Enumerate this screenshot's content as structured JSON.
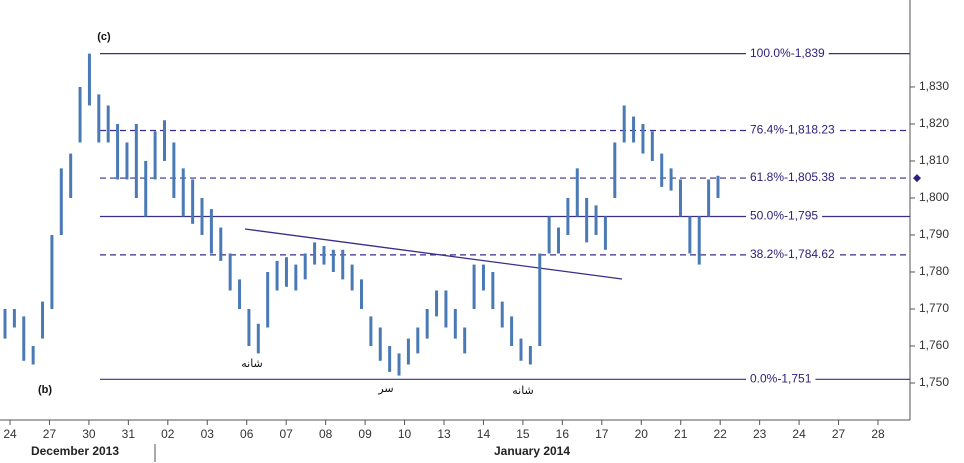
{
  "chart_data": {
    "type": "hilo",
    "categories": [
      "24",
      "27",
      "30",
      "31",
      "02",
      "03",
      "06",
      "07",
      "08",
      "09",
      "10",
      "13",
      "14",
      "15",
      "16",
      "17",
      "20",
      "21",
      "22",
      "23",
      "24",
      "27",
      "28"
    ],
    "months": [
      "December 2013",
      "January 2014"
    ],
    "ylim": [
      1740,
      1853.5
    ],
    "yticks": [
      {
        "value": 1750,
        "label": "1,750"
      },
      {
        "value": 1760,
        "label": "1,760"
      },
      {
        "value": 1770,
        "label": "1,770"
      },
      {
        "value": 1780,
        "label": "1,780"
      },
      {
        "value": 1790,
        "label": "1,790"
      },
      {
        "value": 1800,
        "label": "1,800"
      },
      {
        "value": 1810,
        "label": "1,810"
      },
      {
        "value": 1820,
        "label": "1,820"
      },
      {
        "value": 1830,
        "label": "1,830"
      }
    ],
    "price": {
      "color": "#4a7ab5",
      "high": [
        1770,
        1770,
        1768,
        1760,
        1772,
        1790,
        1808,
        1812,
        1830,
        1839,
        1828,
        1825,
        1820,
        1815,
        1820,
        1810,
        1818,
        1821,
        1815,
        1808,
        1805,
        1800,
        1797,
        1792,
        1785,
        1778,
        1770,
        1766,
        1780,
        1783,
        1784,
        1782,
        1785,
        1788,
        1787,
        1786,
        1786,
        1782,
        1778,
        1768,
        1765,
        1760,
        1758,
        1762,
        1765,
        1770,
        1775,
        1775,
        1770,
        1765,
        1782,
        1782,
        1780,
        1772,
        1768,
        1762,
        1760,
        1785,
        1795,
        1792,
        1800,
        1808,
        1800,
        1798,
        1795,
        1815,
        1825,
        1822,
        1820,
        1818,
        1812,
        1808,
        1805,
        1795,
        1795,
        1805,
        1806
      ],
      "low": [
        1762,
        1765,
        1756,
        1755,
        1762,
        1770,
        1790,
        1800,
        1815,
        1825,
        1815,
        1815,
        1805,
        1805,
        1800,
        1795,
        1805,
        1810,
        1800,
        1795,
        1793,
        1790,
        1785,
        1783,
        1775,
        1770,
        1760,
        1758,
        1765,
        1775,
        1776,
        1775,
        1778,
        1782,
        1782,
        1780,
        1778,
        1775,
        1770,
        1760,
        1756,
        1753,
        1752,
        1755,
        1758,
        1762,
        1768,
        1765,
        1762,
        1758,
        1770,
        1775,
        1770,
        1765,
        1760,
        1756,
        1755,
        1760,
        1785,
        1785,
        1790,
        1795,
        1788,
        1790,
        1786,
        1800,
        1815,
        1815,
        1812,
        1810,
        1803,
        1802,
        1795,
        1785,
        1782,
        1795,
        1800
      ]
    },
    "levels": [
      {
        "value": 1839,
        "label": "100.0%-1,839",
        "style": "solid"
      },
      {
        "value": 1818.23,
        "label": "76.4%-1,818.23",
        "style": "dashed"
      },
      {
        "value": 1805.38,
        "label": "61.8%-1,805.38",
        "style": "dashed"
      },
      {
        "value": 1795,
        "label": "50.0%-1,795",
        "style": "solid"
      },
      {
        "value": 1784.62,
        "label": "38.2%-1,784.62",
        "style": "dashed"
      },
      {
        "value": 1751,
        "label": "0.0%-1,751",
        "style": "solid"
      }
    ],
    "annotations": [
      "(c)",
      "(b)",
      "شانه",
      "سر",
      "شانه"
    ]
  }
}
